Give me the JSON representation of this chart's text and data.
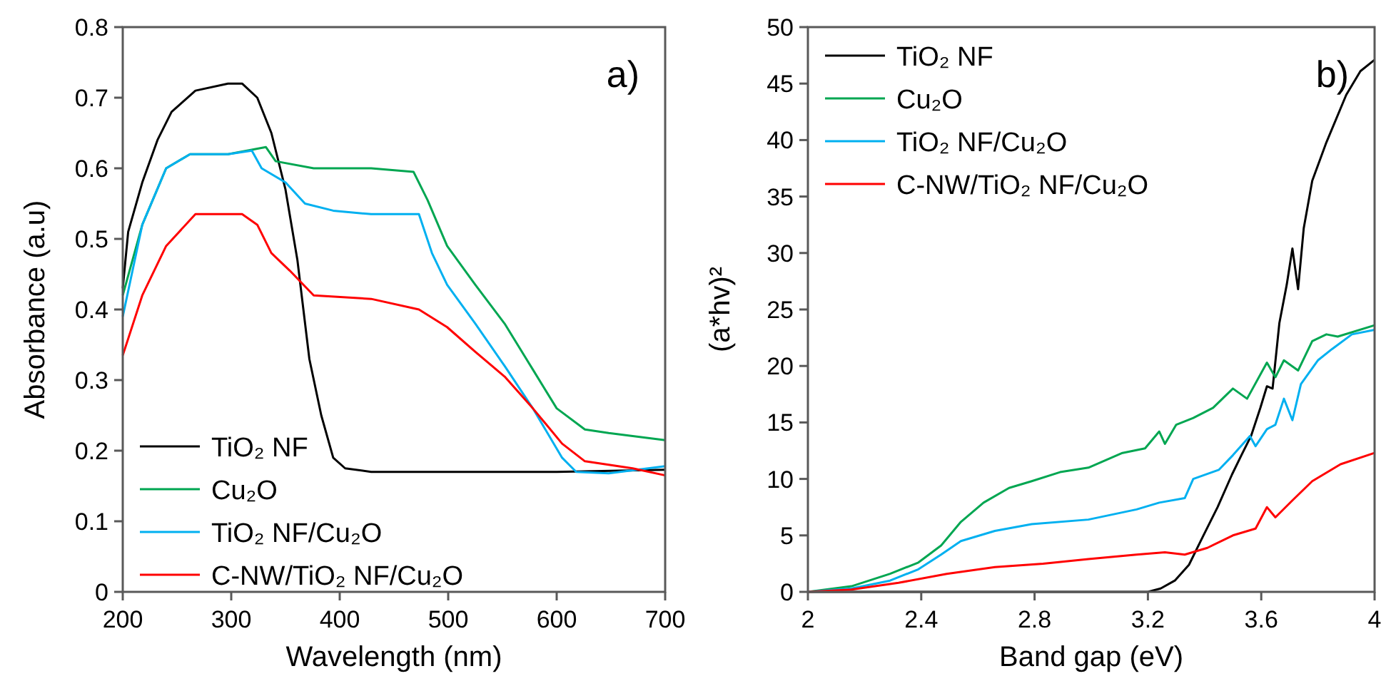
{
  "chart_data": [
    {
      "type": "line",
      "xlabel": "Wavelength  (nm)",
      "ylabel": "Absorbance  (a.u)",
      "annotations": [
        "a)"
      ],
      "xlim": [
        200,
        700
      ],
      "ylim": [
        0,
        0.8
      ],
      "xticks": [
        200,
        300,
        400,
        500,
        600,
        700
      ],
      "yticks": [
        0,
        0.1,
        0.2,
        0.3,
        0.4,
        0.5,
        0.6,
        0.7,
        0.8
      ],
      "legend": "bottom left",
      "grid": false,
      "line_style": "solid",
      "marker": "none",
      "series": [
        {
          "name": "TiO₂  NF",
          "color": "#000000",
          "x": [
            200,
            205,
            218,
            232,
            245,
            267,
            297,
            310,
            324,
            337,
            350,
            361,
            372,
            383,
            394,
            405,
            429,
            500,
            600,
            700
          ],
          "values": [
            0.43,
            0.51,
            0.58,
            0.64,
            0.68,
            0.71,
            0.72,
            0.72,
            0.7,
            0.65,
            0.57,
            0.47,
            0.33,
            0.25,
            0.19,
            0.175,
            0.17,
            0.17,
            0.17,
            0.173
          ]
        },
        {
          "name": "Cu₂O",
          "color": "#00a651",
          "x": [
            200,
            218,
            240,
            262,
            297,
            332,
            341,
            376,
            429,
            468,
            481,
            499,
            525,
            552,
            578,
            600,
            626,
            648,
            700
          ],
          "values": [
            0.42,
            0.52,
            0.6,
            0.62,
            0.62,
            0.63,
            0.61,
            0.6,
            0.6,
            0.595,
            0.555,
            0.49,
            0.435,
            0.38,
            0.315,
            0.26,
            0.23,
            0.225,
            0.215
          ]
        },
        {
          "name": "TiO₂  NF/Cu₂O",
          "color": "#00b0f0",
          "x": [
            200,
            218,
            240,
            262,
            297,
            319,
            328,
            350,
            368,
            394,
            429,
            473,
            485,
            499,
            525,
            552,
            578,
            605,
            618,
            648,
            700
          ],
          "values": [
            0.39,
            0.52,
            0.6,
            0.62,
            0.62,
            0.625,
            0.6,
            0.58,
            0.55,
            0.54,
            0.535,
            0.535,
            0.48,
            0.435,
            0.38,
            0.32,
            0.26,
            0.19,
            0.17,
            0.168,
            0.178
          ]
        },
        {
          "name": "C-NW/TiO₂  NF/Cu₂O",
          "color": "#ff0000",
          "x": [
            200,
            218,
            240,
            267,
            310,
            324,
            337,
            354,
            376,
            429,
            473,
            499,
            525,
            552,
            578,
            605,
            626,
            670,
            700
          ],
          "values": [
            0.335,
            0.42,
            0.49,
            0.535,
            0.535,
            0.52,
            0.48,
            0.455,
            0.42,
            0.415,
            0.4,
            0.375,
            0.34,
            0.305,
            0.26,
            0.21,
            0.185,
            0.175,
            0.165
          ]
        }
      ]
    },
    {
      "type": "line",
      "xlabel": "Band gap (eV)",
      "ylabel": "(a*hv)²",
      "annotations": [
        "b)"
      ],
      "xlim": [
        2,
        4
      ],
      "ylim": [
        0,
        50
      ],
      "xticks": [
        2,
        2.4,
        2.8,
        3.2,
        3.6,
        4
      ],
      "yticks": [
        0,
        5,
        10,
        15,
        20,
        25,
        30,
        35,
        40,
        45,
        50
      ],
      "legend": "top left",
      "grid": false,
      "line_style": "solid",
      "marker": "none",
      "series": [
        {
          "name": "TiO₂  NF",
          "color": "#000000",
          "x": [
            2,
            3.2,
            3.245,
            3.295,
            3.345,
            3.396,
            3.446,
            3.497,
            3.53,
            3.564,
            3.597,
            3.62,
            3.64,
            3.664,
            3.69,
            3.71,
            3.73,
            3.75,
            3.78,
            3.83,
            3.9,
            3.95,
            4
          ],
          "values": [
            0,
            0,
            0.3,
            1,
            2.4,
            5,
            7.5,
            10.4,
            12.1,
            13.8,
            16.3,
            18.2,
            18,
            23.8,
            27.2,
            30.4,
            26.8,
            32.2,
            36.4,
            39.8,
            44,
            46.1,
            47.1
          ]
        },
        {
          "name": "Cu₂O",
          "color": "#00a651",
          "x": [
            2,
            2.154,
            2.29,
            2.39,
            2.47,
            2.54,
            2.62,
            2.71,
            2.79,
            2.89,
            2.99,
            3.11,
            3.19,
            3.24,
            3.26,
            3.3,
            3.36,
            3.43,
            3.5,
            3.55,
            3.62,
            3.65,
            3.68,
            3.73,
            3.78,
            3.83,
            3.87,
            4
          ],
          "values": [
            0,
            0.5,
            1.6,
            2.6,
            4.1,
            6.2,
            7.9,
            9.2,
            9.8,
            10.6,
            11,
            12.3,
            12.7,
            14.2,
            13.1,
            14.8,
            15.4,
            16.3,
            18,
            17.1,
            20.3,
            19,
            20.5,
            19.6,
            22.2,
            22.8,
            22.6,
            23.6
          ]
        },
        {
          "name": "TiO₂  NF/Cu₂O",
          "color": "#00b0f0",
          "x": [
            2,
            2.154,
            2.29,
            2.39,
            2.47,
            2.54,
            2.66,
            2.79,
            2.99,
            3.16,
            3.24,
            3.33,
            3.36,
            3.45,
            3.5,
            3.56,
            3.58,
            3.62,
            3.65,
            3.68,
            3.71,
            3.74,
            3.8,
            3.85,
            3.92,
            4
          ],
          "values": [
            0,
            0.3,
            1,
            2,
            3.3,
            4.5,
            5.4,
            6,
            6.4,
            7.3,
            7.9,
            8.3,
            10,
            10.8,
            12.1,
            13.8,
            12.9,
            14.4,
            14.8,
            17.1,
            15.2,
            18.4,
            20.5,
            21.5,
            22.8,
            23.2
          ]
        },
        {
          "name": "C-NW/TiO₂  NF/Cu₂O",
          "color": "#ff0000",
          "x": [
            2,
            2.154,
            2.32,
            2.49,
            2.66,
            2.83,
            2.99,
            3.16,
            3.26,
            3.33,
            3.41,
            3.5,
            3.58,
            3.62,
            3.65,
            3.71,
            3.78,
            3.88,
            4
          ],
          "values": [
            0,
            0.2,
            0.8,
            1.6,
            2.2,
            2.5,
            2.9,
            3.3,
            3.5,
            3.3,
            3.9,
            5,
            5.6,
            7.5,
            6.6,
            8.1,
            9.8,
            11.3,
            12.3
          ]
        }
      ]
    }
  ]
}
